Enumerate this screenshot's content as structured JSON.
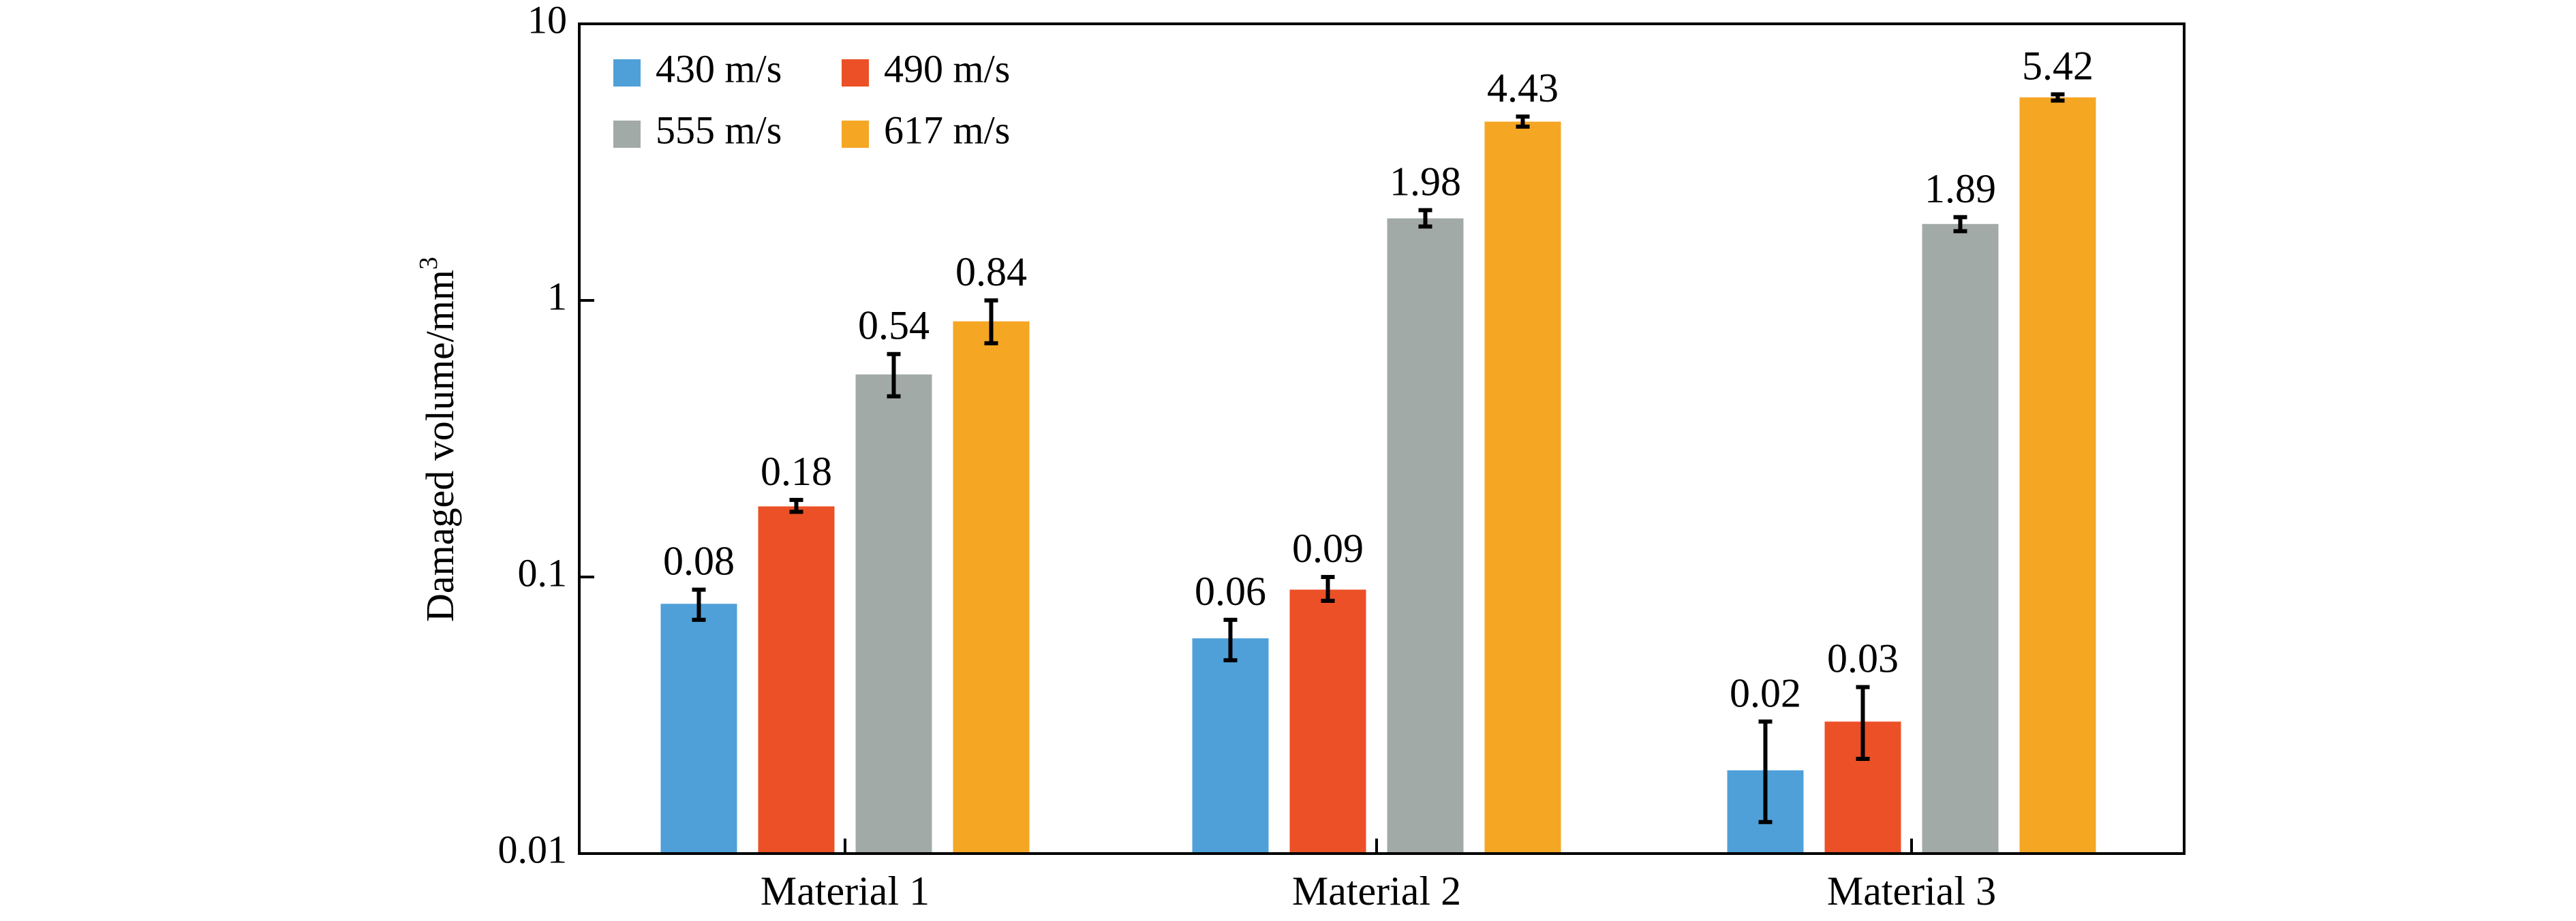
{
  "chart_data": {
    "type": "bar",
    "yscale": "log",
    "ylim": [
      0.01,
      10
    ],
    "ylabel": "Damaged volume/mm",
    "ylabel_superscript": "3",
    "yticks": [
      "0.01",
      "0.1",
      "1",
      "10"
    ],
    "yticks_values": [
      0.01,
      0.1,
      1,
      10
    ],
    "categories": [
      "Material 1",
      "Material 2",
      "Material 3"
    ],
    "legend_position": "top-left",
    "grid": false,
    "series": [
      {
        "name": "430 m/s",
        "color": "#4fa0d8",
        "values": [
          0.08,
          0.06,
          0.02
        ],
        "labels": [
          "0.08",
          "0.06",
          "0.02"
        ],
        "err_low": [
          0.07,
          0.05,
          0.013
        ],
        "err_high": [
          0.09,
          0.07,
          0.03
        ]
      },
      {
        "name": "490 m/s",
        "color": "#ec5026",
        "values": [
          0.18,
          0.09,
          0.03
        ],
        "labels": [
          "0.18",
          "0.09",
          "0.03"
        ],
        "err_low": [
          0.172,
          0.082,
          0.022
        ],
        "err_high": [
          0.19,
          0.1,
          0.04
        ]
      },
      {
        "name": "555 m/s",
        "color": "#a2aaa7",
        "values": [
          0.54,
          1.98,
          1.89
        ],
        "labels": [
          "0.54",
          "1.98",
          "1.89"
        ],
        "err_low": [
          0.45,
          1.85,
          1.78
        ],
        "err_high": [
          0.64,
          2.12,
          2.0
        ]
      },
      {
        "name": "617 m/s",
        "color": "#f5a623",
        "values": [
          0.84,
          4.43,
          5.42
        ],
        "labels": [
          "0.84",
          "4.43",
          "5.42"
        ],
        "err_low": [
          0.7,
          4.25,
          5.28
        ],
        "err_high": [
          1.0,
          4.62,
          5.56
        ]
      }
    ]
  }
}
